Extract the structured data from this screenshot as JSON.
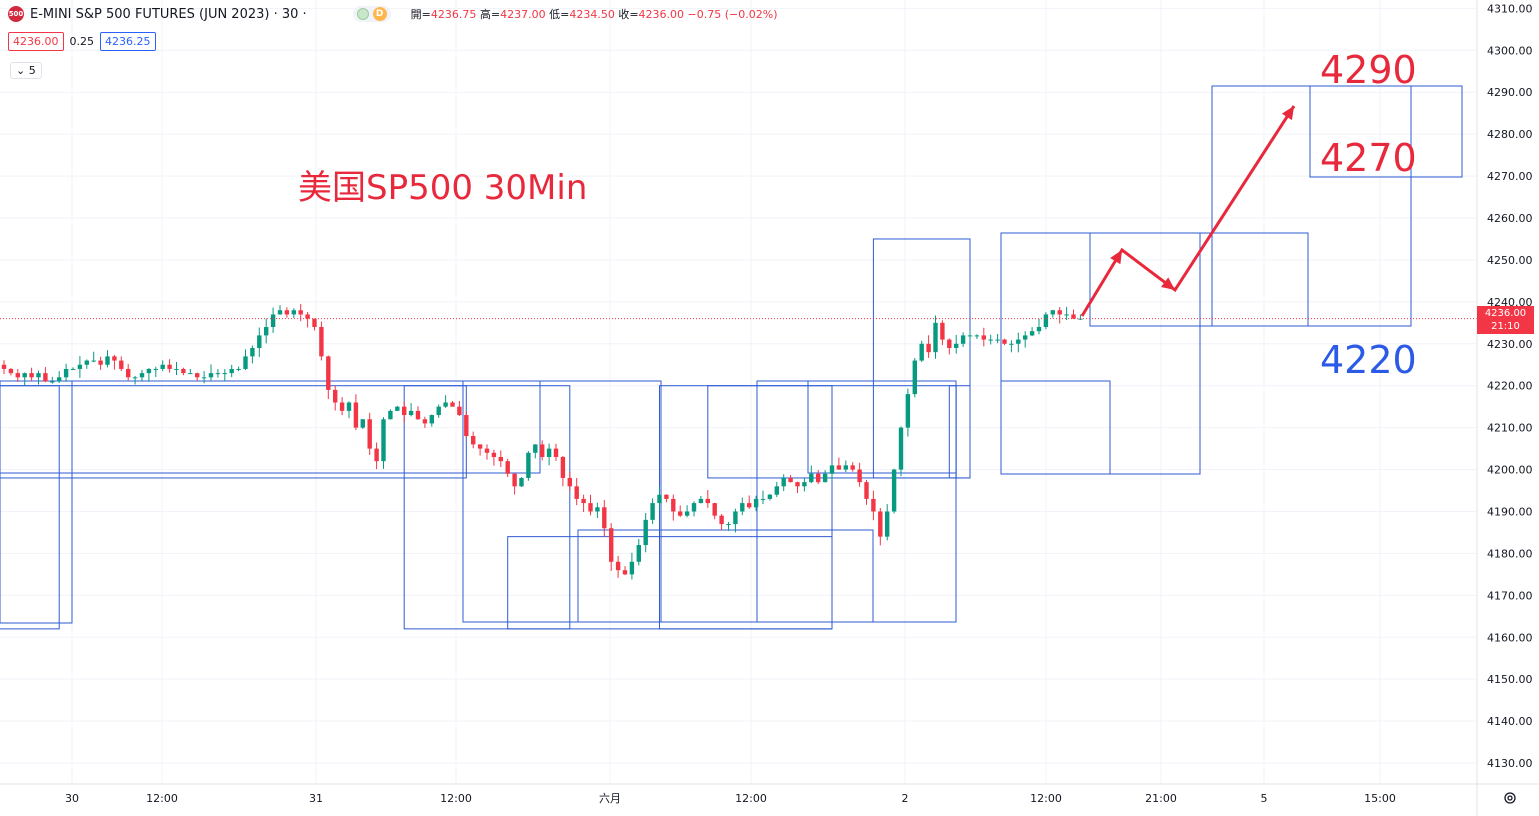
{
  "header": {
    "symbol_badge": "500",
    "title": "E-MINI S&P 500 FUTURES (JUN 2023) · 30 ·",
    "status_badge": "D",
    "ohlc": {
      "open_label": "開=",
      "open": "4236.75",
      "high_label": "高=",
      "high": "4237.00",
      "low_label": "低=",
      "low": "4234.50",
      "close_label": "收=",
      "close": "4236.00",
      "change": "−0.75 (−0.02%)"
    },
    "sell_price": "4236.00",
    "spread": "0.25",
    "buy_price": "4236.25",
    "indicator_toggle": "5"
  },
  "annotations": {
    "title_text": "美国SP500 30Min",
    "target_high": "4290",
    "target_mid": "4270",
    "support": "4220"
  },
  "price_tag": {
    "price": "4236.00",
    "countdown": "21:10"
  },
  "colors": {
    "up": "#089981",
    "down": "#f23645",
    "box": "#2f5bd4",
    "annotation_red": "#e8293c",
    "annotation_blue": "#2a5ae6"
  },
  "chart_data": {
    "type": "candlestick",
    "y_axis": {
      "min": 4125,
      "max": 4312,
      "ticks": [
        4310,
        4300,
        4290,
        4280,
        4270,
        4260,
        4250,
        4240,
        4230,
        4220,
        4210,
        4200,
        4190,
        4180,
        4170,
        4160,
        4150,
        4140,
        4130
      ],
      "tick_labels": [
        "4310.00",
        "4300.00",
        "4290.00",
        "4280.00",
        "4270.00",
        "4260.00",
        "4250.00",
        "4240.00",
        "4230.00",
        "4220.00",
        "4210.00",
        "4200.00",
        "4190.00",
        "4180.00",
        "4170.00",
        "4160.00",
        "4150.00",
        "4140.00",
        "4130.00"
      ]
    },
    "x_labels": [
      "30",
      "12:00",
      "31",
      "12:00",
      "六月",
      "12:00",
      "2",
      "12:00",
      "21:00",
      "5",
      "15:00"
    ],
    "current_price": 4236.0,
    "closes": [
      4224,
      4223,
      4222,
      4223,
      4222,
      4223,
      4221,
      4221,
      4222,
      4224,
      4224,
      4225,
      4226,
      4226,
      4225,
      4227,
      4226,
      4224,
      4222,
      4222,
      4223,
      4224,
      4224,
      4225,
      4224,
      4224,
      4223,
      4223,
      4222,
      4222,
      4223,
      4223,
      4223,
      4224,
      4224,
      4227,
      4229,
      4232,
      4234,
      4237,
      4238,
      4237,
      4238,
      4237,
      4236,
      4234,
      4227,
      4219,
      4216,
      4214,
      4216,
      4210,
      4212,
      4205,
      4202,
      4212,
      4214,
      4215,
      4213,
      4214,
      4212,
      4211,
      4213,
      4215,
      4216,
      4215,
      4213,
      4208,
      4206,
      4205,
      4204,
      4203,
      4202,
      4199,
      4196,
      4198,
      4204,
      4206,
      4203,
      4205,
      4203,
      4198,
      4196,
      4193,
      4192,
      4190,
      4191,
      4186,
      4178,
      4176,
      4175,
      4178,
      4182,
      4188,
      4192,
      4194,
      4193,
      4190,
      4189,
      4190,
      4192,
      4193,
      4192,
      4189,
      4187,
      4187,
      4190,
      4192,
      4191,
      4193,
      4193,
      4194,
      4196,
      4198,
      4197,
      4196,
      4197,
      4199,
      4197,
      4199,
      4201,
      4200,
      4201,
      4200,
      4197,
      4193,
      4190,
      4184,
      4190,
      4200,
      4210,
      4218,
      4226,
      4230,
      4228,
      4235,
      4231,
      4229,
      4230,
      4232,
      4232,
      4232,
      4231,
      4231,
      4231,
      4230,
      4230,
      4231,
      4232,
      4233,
      4234,
      4237,
      4238,
      4237,
      4237,
      4236,
      4236
    ],
    "series": [
      {
        "name": "E-MINI S&P 500 FUTURES (JUN 2023)",
        "values": "closes"
      }
    ],
    "boxes": [
      {
        "from_index": -1,
        "to_index": 8,
        "y_top": 4220,
        "y_bottom": 4162
      },
      {
        "from_index": -1,
        "to_index": 67,
        "y_top": 4220,
        "y_bottom": 4198
      },
      {
        "from_index": 58,
        "to_index": 82,
        "y_top": 4220,
        "y_bottom": 4162
      },
      {
        "from_index": 73,
        "to_index": 120,
        "y_top": 4184,
        "y_bottom": 4162
      },
      {
        "from_index": 95,
        "to_index": 120,
        "y_top": 4220,
        "y_bottom": 4162
      },
      {
        "from_index": 102,
        "to_index": 138,
        "y_top": 4220,
        "y_bottom": 4198
      },
      {
        "from_index": 126,
        "to_index": 140,
        "y_top": 4255,
        "y_bottom": 4198
      },
      {
        "from_index": 137,
        "to_index": 140,
        "y_top": 4220,
        "y_bottom": 4198
      }
    ]
  }
}
